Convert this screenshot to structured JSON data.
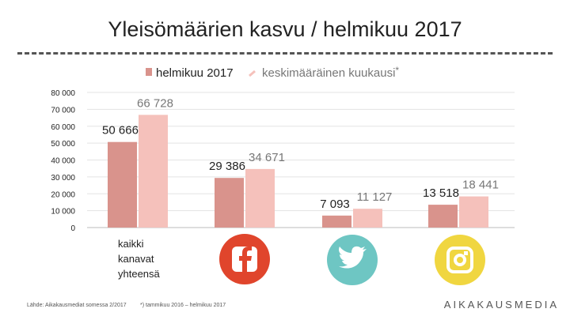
{
  "page": {
    "title": "Yleisömäärien kasvu / helmikuu 2017",
    "source": "Lähde: Aikakausmediat somessa 2/2017",
    "note": "*) tammikuu 2016 – helmikuu 2017",
    "brand": "AIKAKAUSMEDIA"
  },
  "icons": [
    {
      "name": "facebook-icon",
      "glyph": "f",
      "color": "#e0452c"
    },
    {
      "name": "twitter-icon",
      "glyph": "bird",
      "color": "#6ec6c3"
    },
    {
      "name": "instagram-icon",
      "glyph": "camera",
      "color": "#f0d640"
    }
  ],
  "chart_data": {
    "type": "bar",
    "title": "Yleisömäärien kasvu / helmikuu 2017",
    "categories": [
      "kaikki kanavat yhteensä",
      "Facebook",
      "Twitter",
      "Instagram"
    ],
    "category_label_lines": [
      "kaikki",
      "kanavat",
      "yhteensä"
    ],
    "series": [
      {
        "name": "helmikuu 2017",
        "color": "#d9938c",
        "values": [
          50666,
          29386,
          7093,
          13518
        ],
        "labels": [
          "50 666",
          "29 386",
          "7 093",
          "13 518"
        ]
      },
      {
        "name": "keskimääräinen kuukausi",
        "suffix": "*",
        "color": "#f5c1bb",
        "values": [
          66728,
          34671,
          11127,
          18441
        ],
        "labels": [
          "66 728",
          "34 671",
          "11 127",
          "18 441"
        ]
      }
    ],
    "ylim": [
      0,
      80000
    ],
    "yticks": [
      0,
      10000,
      20000,
      30000,
      40000,
      50000,
      60000,
      70000,
      80000
    ],
    "ytick_labels": [
      "0",
      "10 000",
      "20 000",
      "30 000",
      "40 000",
      "50 000",
      "60 000",
      "70 000",
      "80 000"
    ],
    "grid": true,
    "legend": "top-center"
  }
}
